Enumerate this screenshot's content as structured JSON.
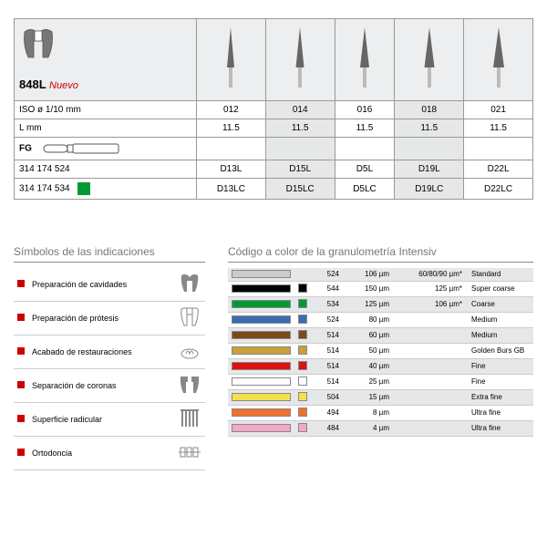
{
  "product": {
    "model": "848L",
    "badge": "Nuevo",
    "rows": [
      {
        "label": "ISO ø 1/10 mm",
        "values": [
          "012",
          "014",
          "016",
          "018",
          "021"
        ]
      },
      {
        "label": "L mm",
        "values": [
          "11.5",
          "11.5",
          "11.5",
          "11.5",
          "11.5"
        ]
      }
    ],
    "fg_label": "FG",
    "ref_rows": [
      {
        "ref": "314 174 524",
        "sq": null,
        "codes": [
          "D13L",
          "D15L",
          "D5L",
          "D19L",
          "D22L"
        ]
      },
      {
        "ref": "314 174 534",
        "sq": "#009933",
        "codes": [
          "D13LC",
          "D15LC",
          "D5LC",
          "D19LC",
          "D22LC"
        ]
      }
    ],
    "alt_cols": [
      1,
      3
    ]
  },
  "legend": {
    "title": "Símbolos de las indicaciones",
    "items": [
      {
        "label": "Preparación de cavidades",
        "icon": "tooth-cavity"
      },
      {
        "label": "Preparación de prótesis",
        "icon": "tooth-prep"
      },
      {
        "label": "Acabado de restauraciones",
        "icon": "polish"
      },
      {
        "label": "Separación de coronas",
        "icon": "crown-sep"
      },
      {
        "label": "Superficie radicular",
        "icon": "roots"
      },
      {
        "label": "Ortodoncia",
        "icon": "ortho"
      }
    ]
  },
  "grit": {
    "title": "Código a color de la granulometría Intensiv",
    "rows": [
      {
        "bar": "#cccccc",
        "sq": null,
        "code": "524",
        "um": "106 µm",
        "um2": "60/80/90 µm*",
        "name": "Standard",
        "alt": true
      },
      {
        "bar": "#000000",
        "sq": "#000000",
        "code": "544",
        "um": "150 µm",
        "um2": "125 µm*",
        "name": "Super coarse",
        "alt": false
      },
      {
        "bar": "#009933",
        "sq": "#009933",
        "code": "534",
        "um": "125 µm",
        "um2": "106 µm*",
        "name": "Coarse",
        "alt": true
      },
      {
        "bar": "#3a6cb2",
        "sq": "#3a6cb2",
        "code": "524",
        "um": "80 µm",
        "um2": "",
        "name": "Medium",
        "alt": false
      },
      {
        "bar": "#7a4a1a",
        "sq": "#7a4a1a",
        "code": "514",
        "um": "60 µm",
        "um2": "",
        "name": "Medium",
        "alt": true
      },
      {
        "bar": "#c9a038",
        "sq": "#c9a038",
        "code": "514",
        "um": "50 µm",
        "um2": "",
        "name": "Golden Burs GB",
        "alt": false
      },
      {
        "bar": "#d11",
        "sq": "#d11",
        "code": "514",
        "um": "40 µm",
        "um2": "",
        "name": "Fine",
        "alt": true
      },
      {
        "bar": "#ffffff",
        "sq": "#ffffff",
        "code": "514",
        "um": "25 µm",
        "um2": "",
        "name": "Fine",
        "alt": false
      },
      {
        "bar": "#f2e24a",
        "sq": "#f2e24a",
        "code": "504",
        "um": "15 µm",
        "um2": "",
        "name": "Extra fine",
        "alt": true
      },
      {
        "bar": "#f07030",
        "sq": "#f07030",
        "code": "494",
        "um": "8 µm",
        "um2": "",
        "name": "Ultra fine",
        "alt": false
      },
      {
        "bar": "#f2a8c8",
        "sq": "#f2a8c8",
        "code": "484",
        "um": "4 µm",
        "um2": "",
        "name": "Ultra fine",
        "alt": true
      }
    ]
  }
}
